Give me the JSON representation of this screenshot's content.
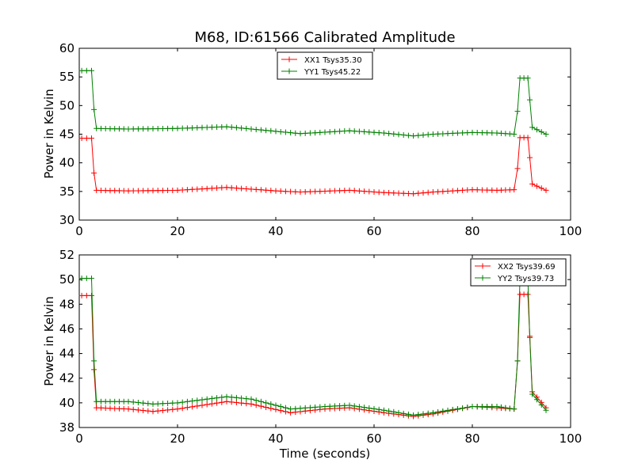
{
  "chart_data": [
    {
      "type": "line",
      "title": "M68, ID:61566 Calibrated Amplitude",
      "xlabel": "",
      "ylabel": "Power in Kelvin",
      "xlim": [
        0,
        100
      ],
      "ylim": [
        30,
        60
      ],
      "xticks": [
        0,
        20,
        40,
        60,
        80,
        100
      ],
      "yticks": [
        30,
        35,
        40,
        45,
        50,
        55,
        60
      ],
      "legend_position": "top-center",
      "series": [
        {
          "name": "XX1 Tsys35.30",
          "color": "#ff0000",
          "x": [
            0.5,
            2.5,
            3,
            3.5,
            10,
            20,
            30,
            40,
            45,
            55,
            62,
            68,
            72,
            80,
            85,
            88.5,
            89.2,
            89.7,
            91.3,
            91.7,
            92.2,
            95
          ],
          "y": [
            44.3,
            44.3,
            38.2,
            35.2,
            35.1,
            35.2,
            35.7,
            35.1,
            34.9,
            35.2,
            34.8,
            34.6,
            34.9,
            35.3,
            35.2,
            35.3,
            39.0,
            44.4,
            44.4,
            40.9,
            36.3,
            35.2
          ]
        },
        {
          "name": "YY1 Tsys45.22",
          "color": "#008000",
          "x": [
            0.5,
            2.5,
            3,
            3.5,
            10,
            20,
            30,
            40,
            45,
            55,
            62,
            68,
            72,
            80,
            85,
            88.5,
            89.2,
            89.7,
            91.3,
            91.7,
            92.2,
            95
          ],
          "y": [
            56.1,
            56.1,
            49.3,
            46.0,
            45.9,
            46.0,
            46.3,
            45.5,
            45.1,
            45.6,
            45.2,
            44.7,
            45.0,
            45.3,
            45.2,
            45.0,
            49.0,
            54.8,
            54.8,
            51.0,
            46.2,
            45.0
          ]
        }
      ]
    },
    {
      "type": "line",
      "title": "",
      "xlabel": "Time (seconds)",
      "ylabel": "Power in Kelvin",
      "xlim": [
        0,
        100
      ],
      "ylim": [
        38,
        52
      ],
      "xticks": [
        0,
        20,
        40,
        60,
        80,
        100
      ],
      "yticks": [
        38,
        40,
        42,
        44,
        46,
        48,
        50,
        52
      ],
      "legend_position": "top-right",
      "series": [
        {
          "name": "XX2 Tsys39.69",
          "color": "#ff0000",
          "x": [
            0.5,
            2.5,
            3,
            3.5,
            10,
            15,
            20,
            30,
            35,
            43,
            50,
            55,
            62,
            68,
            72,
            80,
            85,
            88.5,
            89.2,
            89.7,
            91.3,
            91.7,
            92.2,
            95
          ],
          "y": [
            48.7,
            48.7,
            42.7,
            39.6,
            39.5,
            39.3,
            39.5,
            40.1,
            39.9,
            39.2,
            39.5,
            39.6,
            39.2,
            38.9,
            39.1,
            39.7,
            39.6,
            39.5,
            43.4,
            48.8,
            48.8,
            45.4,
            40.9,
            39.6
          ]
        },
        {
          "name": "YY2 Tsys39.73",
          "color": "#008000",
          "x": [
            0.5,
            2.5,
            3,
            3.5,
            10,
            15,
            20,
            30,
            35,
            43,
            50,
            55,
            62,
            68,
            72,
            80,
            85,
            88.5,
            89.2,
            89.7,
            91.3,
            91.7,
            92.2,
            95
          ],
          "y": [
            50.1,
            50.1,
            43.4,
            40.1,
            40.1,
            39.9,
            40.0,
            40.5,
            40.3,
            39.5,
            39.7,
            39.8,
            39.4,
            39.0,
            39.2,
            39.7,
            39.7,
            39.5,
            43.4,
            50.0,
            50.0,
            45.3,
            40.7,
            39.4
          ]
        }
      ]
    }
  ]
}
